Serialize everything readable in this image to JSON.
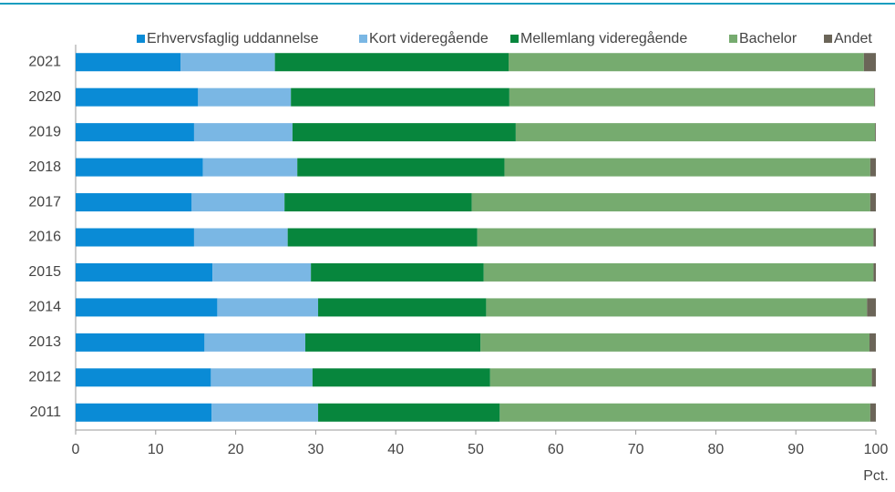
{
  "chart_data": {
    "type": "stacked_barh",
    "categories": [
      "2021",
      "2020",
      "2019",
      "2018",
      "2017",
      "2016",
      "2015",
      "2014",
      "2013",
      "2012",
      "2011"
    ],
    "series": [
      {
        "name": "Erhvervsfaglig uddannelse",
        "color": "#0a8bd6",
        "values": [
          13.1,
          15.3,
          14.8,
          15.9,
          14.5,
          14.8,
          17.1,
          17.7,
          16.1,
          16.9,
          17.0
        ]
      },
      {
        "name": "Kort videregående",
        "color": "#7ab7e4",
        "values": [
          11.8,
          11.6,
          12.3,
          11.8,
          11.6,
          11.7,
          12.3,
          12.6,
          12.6,
          12.7,
          13.3
        ]
      },
      {
        "name": "Mellemlang videregående",
        "color": "#07863d",
        "values": [
          29.2,
          27.3,
          27.9,
          25.9,
          23.4,
          23.7,
          21.6,
          21.0,
          21.9,
          22.2,
          22.7
        ]
      },
      {
        "name": "Bachelor",
        "color": "#76ab6f",
        "values": [
          44.4,
          45.6,
          44.9,
          45.7,
          49.8,
          49.5,
          48.7,
          47.6,
          48.6,
          47.7,
          46.3
        ]
      },
      {
        "name": "Andet",
        "color": "#6b6558",
        "values": [
          1.5,
          0.1,
          0.1,
          0.7,
          0.7,
          0.3,
          0.3,
          1.1,
          0.8,
          0.5,
          0.7
        ]
      }
    ],
    "x_label": "Pct.",
    "xlim": [
      0,
      100
    ],
    "xticks": [
      0,
      10,
      20,
      30,
      40,
      50,
      60,
      70,
      80,
      90,
      100
    ],
    "grid": false
  }
}
